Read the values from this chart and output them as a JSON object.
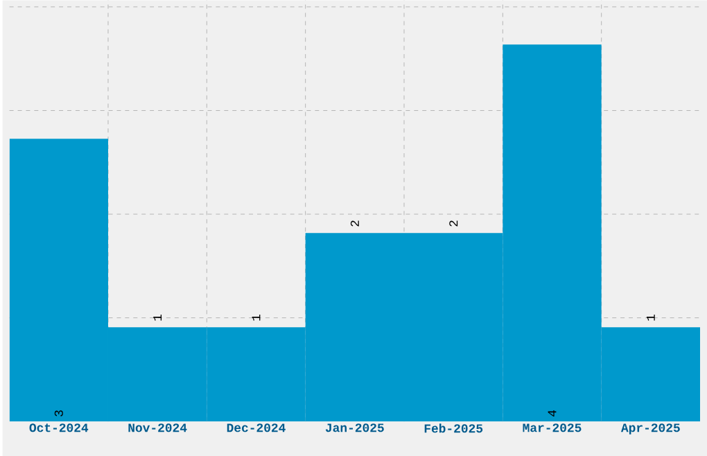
{
  "chart_data": {
    "type": "bar",
    "categories": [
      "Oct-2024",
      "Nov-2024",
      "Dec-2024",
      "Jan-2025",
      "Feb-2025",
      "Mar-2025",
      "Apr-2025"
    ],
    "values": [
      3,
      1,
      1,
      2,
      2,
      4,
      1
    ],
    "color": "#0099cc",
    "ylim": [
      0,
      4.47
    ],
    "yticks": [
      {
        "value": 1.1,
        "label": null
      },
      {
        "value": 2.2,
        "label": null
      },
      {
        "value": 3.3,
        "label": null
      },
      {
        "value": 4.4,
        "label": null
      }
    ],
    "tick_labels": "x",
    "grid": true,
    "data_labels": true
  }
}
